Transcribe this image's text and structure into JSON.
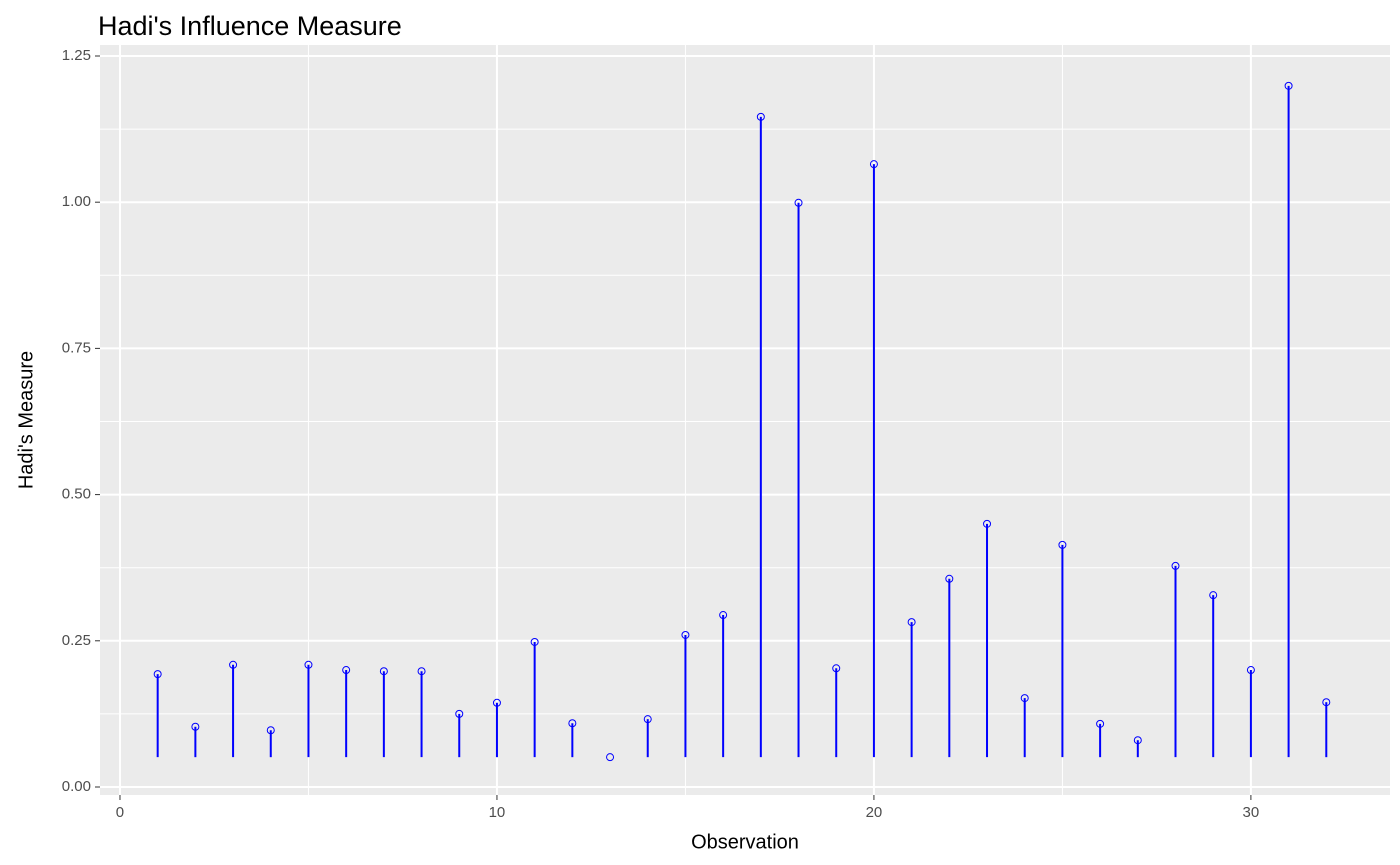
{
  "chart_data": {
    "type": "lollipop",
    "title": "Hadi's Influence Measure",
    "x_label": "Observation",
    "y_label": "Hadi's Measure",
    "x": [
      1,
      2,
      3,
      4,
      5,
      6,
      7,
      8,
      9,
      10,
      11,
      12,
      13,
      14,
      15,
      16,
      17,
      18,
      19,
      20,
      21,
      22,
      23,
      24,
      25,
      26,
      27,
      28,
      29,
      30,
      31,
      32
    ],
    "values": [
      0.193,
      0.103,
      0.209,
      0.097,
      0.209,
      0.2,
      0.198,
      0.198,
      0.125,
      0.144,
      0.248,
      0.109,
      0.051,
      0.116,
      0.26,
      0.294,
      1.146,
      0.999,
      0.203,
      1.065,
      0.282,
      0.356,
      0.45,
      0.152,
      0.414,
      0.108,
      0.08,
      0.378,
      0.328,
      0.2,
      1.199,
      0.145
    ],
    "color": "#0000ff",
    "xlim": [
      -0.53,
      33.69
    ],
    "ylim": [
      -0.0137,
      1.2688
    ],
    "xticks": [
      0,
      10,
      20,
      30
    ],
    "yticks": [
      {
        "value": 0,
        "label": "0.00"
      },
      0.25,
      {
        "value": 0.5,
        "label": "0.50"
      },
      0.75,
      {
        "value": 1,
        "label": "1.00"
      },
      1.25
    ],
    "grid": true
  }
}
